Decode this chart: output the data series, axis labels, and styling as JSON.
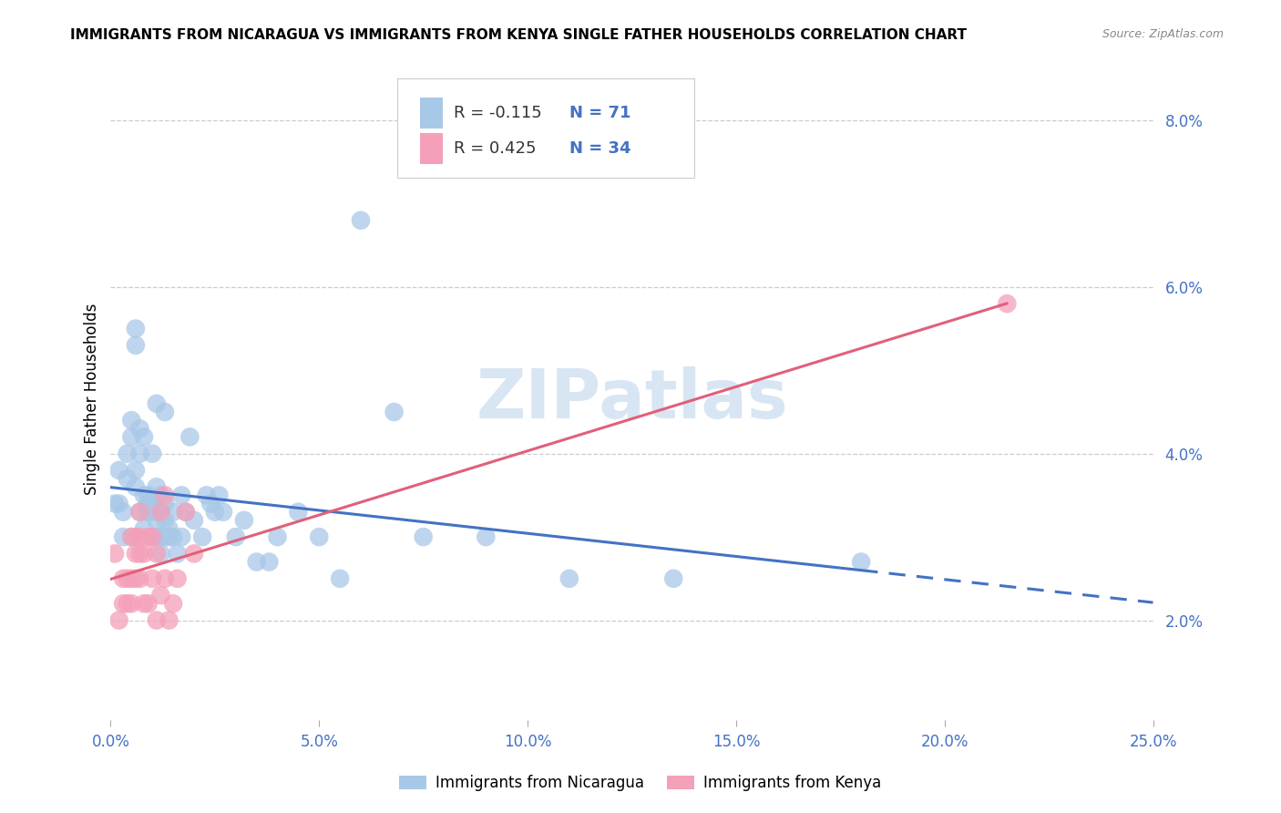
{
  "title": "IMMIGRANTS FROM NICARAGUA VS IMMIGRANTS FROM KENYA SINGLE FATHER HOUSEHOLDS CORRELATION CHART",
  "source": "Source: ZipAtlas.com",
  "ylabel": "Single Father Households",
  "xlim": [
    0.0,
    0.25
  ],
  "ylim": [
    0.008,
    0.085
  ],
  "xticks": [
    0.0,
    0.05,
    0.1,
    0.15,
    0.2,
    0.25
  ],
  "yticks": [
    0.02,
    0.04,
    0.06,
    0.08
  ],
  "xtick_labels": [
    "0.0%",
    "5.0%",
    "10.0%",
    "15.0%",
    "20.0%",
    "25.0%"
  ],
  "ytick_labels": [
    "2.0%",
    "4.0%",
    "6.0%",
    "8.0%"
  ],
  "watermark": "ZIPatlas",
  "nicaragua_color": "#a8c8e8",
  "kenya_color": "#f4a0b8",
  "nicaragua_line_color": "#4472c4",
  "kenya_line_color": "#e0607a",
  "legend_nic_label": "R = -0.115   N = 71",
  "legend_ken_label": "R = 0.425   N = 34",
  "bottom_legend_nic": "Immigrants from Nicaragua",
  "bottom_legend_ken": "Immigrants from Kenya",
  "nicaragua_points": [
    [
      0.001,
      0.034
    ],
    [
      0.002,
      0.034
    ],
    [
      0.002,
      0.038
    ],
    [
      0.003,
      0.03
    ],
    [
      0.003,
      0.033
    ],
    [
      0.004,
      0.037
    ],
    [
      0.004,
      0.04
    ],
    [
      0.005,
      0.03
    ],
    [
      0.005,
      0.042
    ],
    [
      0.005,
      0.044
    ],
    [
      0.006,
      0.036
    ],
    [
      0.006,
      0.038
    ],
    [
      0.006,
      0.053
    ],
    [
      0.006,
      0.055
    ],
    [
      0.007,
      0.033
    ],
    [
      0.007,
      0.04
    ],
    [
      0.007,
      0.043
    ],
    [
      0.008,
      0.031
    ],
    [
      0.008,
      0.035
    ],
    [
      0.008,
      0.042
    ],
    [
      0.009,
      0.033
    ],
    [
      0.009,
      0.034
    ],
    [
      0.009,
      0.034
    ],
    [
      0.009,
      0.035
    ],
    [
      0.01,
      0.03
    ],
    [
      0.01,
      0.033
    ],
    [
      0.01,
      0.034
    ],
    [
      0.01,
      0.04
    ],
    [
      0.011,
      0.03
    ],
    [
      0.011,
      0.032
    ],
    [
      0.011,
      0.036
    ],
    [
      0.011,
      0.046
    ],
    [
      0.012,
      0.028
    ],
    [
      0.012,
      0.03
    ],
    [
      0.012,
      0.033
    ],
    [
      0.012,
      0.035
    ],
    [
      0.013,
      0.03
    ],
    [
      0.013,
      0.032
    ],
    [
      0.013,
      0.034
    ],
    [
      0.013,
      0.045
    ],
    [
      0.014,
      0.03
    ],
    [
      0.014,
      0.031
    ],
    [
      0.015,
      0.03
    ],
    [
      0.015,
      0.033
    ],
    [
      0.016,
      0.028
    ],
    [
      0.017,
      0.03
    ],
    [
      0.017,
      0.035
    ],
    [
      0.018,
      0.033
    ],
    [
      0.019,
      0.042
    ],
    [
      0.02,
      0.032
    ],
    [
      0.022,
      0.03
    ],
    [
      0.023,
      0.035
    ],
    [
      0.024,
      0.034
    ],
    [
      0.025,
      0.033
    ],
    [
      0.026,
      0.035
    ],
    [
      0.027,
      0.033
    ],
    [
      0.03,
      0.03
    ],
    [
      0.032,
      0.032
    ],
    [
      0.035,
      0.027
    ],
    [
      0.038,
      0.027
    ],
    [
      0.04,
      0.03
    ],
    [
      0.045,
      0.033
    ],
    [
      0.05,
      0.03
    ],
    [
      0.055,
      0.025
    ],
    [
      0.06,
      0.068
    ],
    [
      0.068,
      0.045
    ],
    [
      0.075,
      0.03
    ],
    [
      0.09,
      0.03
    ],
    [
      0.11,
      0.025
    ],
    [
      0.135,
      0.025
    ],
    [
      0.18,
      0.027
    ]
  ],
  "kenya_points": [
    [
      0.001,
      0.028
    ],
    [
      0.002,
      0.02
    ],
    [
      0.003,
      0.022
    ],
    [
      0.003,
      0.025
    ],
    [
      0.004,
      0.022
    ],
    [
      0.004,
      0.025
    ],
    [
      0.005,
      0.022
    ],
    [
      0.005,
      0.025
    ],
    [
      0.005,
      0.03
    ],
    [
      0.006,
      0.025
    ],
    [
      0.006,
      0.028
    ],
    [
      0.006,
      0.03
    ],
    [
      0.007,
      0.025
    ],
    [
      0.007,
      0.028
    ],
    [
      0.007,
      0.03
    ],
    [
      0.007,
      0.033
    ],
    [
      0.008,
      0.022
    ],
    [
      0.008,
      0.028
    ],
    [
      0.009,
      0.022
    ],
    [
      0.009,
      0.03
    ],
    [
      0.01,
      0.025
    ],
    [
      0.01,
      0.03
    ],
    [
      0.011,
      0.02
    ],
    [
      0.011,
      0.028
    ],
    [
      0.012,
      0.023
    ],
    [
      0.012,
      0.033
    ],
    [
      0.013,
      0.025
    ],
    [
      0.013,
      0.035
    ],
    [
      0.014,
      0.02
    ],
    [
      0.015,
      0.022
    ],
    [
      0.016,
      0.025
    ],
    [
      0.018,
      0.033
    ],
    [
      0.02,
      0.028
    ],
    [
      0.215,
      0.058
    ]
  ]
}
